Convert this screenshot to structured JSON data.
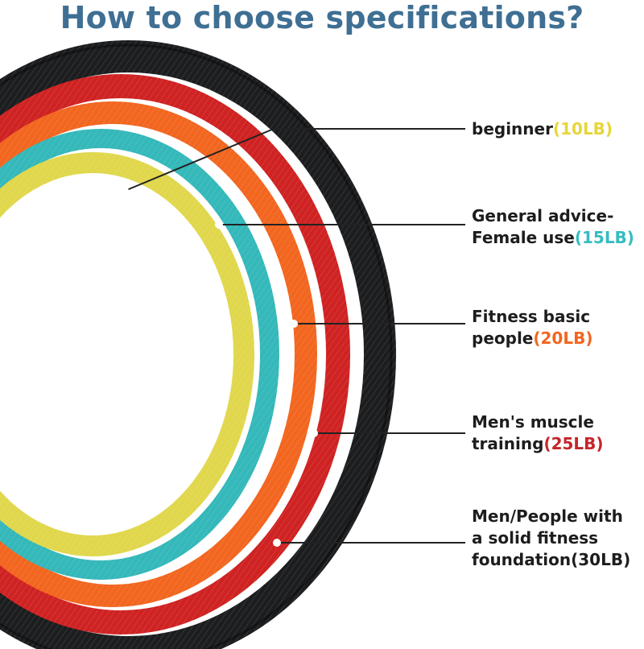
{
  "title": "How to choose specifications?",
  "colors": {
    "title": "#3f6f93",
    "black_band": "#1c1d1f",
    "red_band": "#cf2222",
    "orange_band": "#f2661f",
    "teal_band": "#34b8b9",
    "yellow_band": "#e0d74c",
    "text": "#1d1d1d"
  },
  "labels": [
    {
      "text": "beginner",
      "value": "(10LB)",
      "value_color": "#e8d53a"
    },
    {
      "line1": "General advice-",
      "text": "Female use",
      "value": "(15LB)",
      "value_color": "#36bcc0"
    },
    {
      "line1": "Fitness basic",
      "text": "people",
      "value": "(20LB)",
      "value_color": "#f2661f"
    },
    {
      "line1": "Men's muscle",
      "text": "training",
      "value": "(25LB)",
      "value_color": "#c4262a"
    },
    {
      "line1": "Men/People with",
      "line2": "a solid fitness",
      "text": "foundation",
      "value": "(30LB)",
      "value_color": "#1d1d1d"
    }
  ]
}
